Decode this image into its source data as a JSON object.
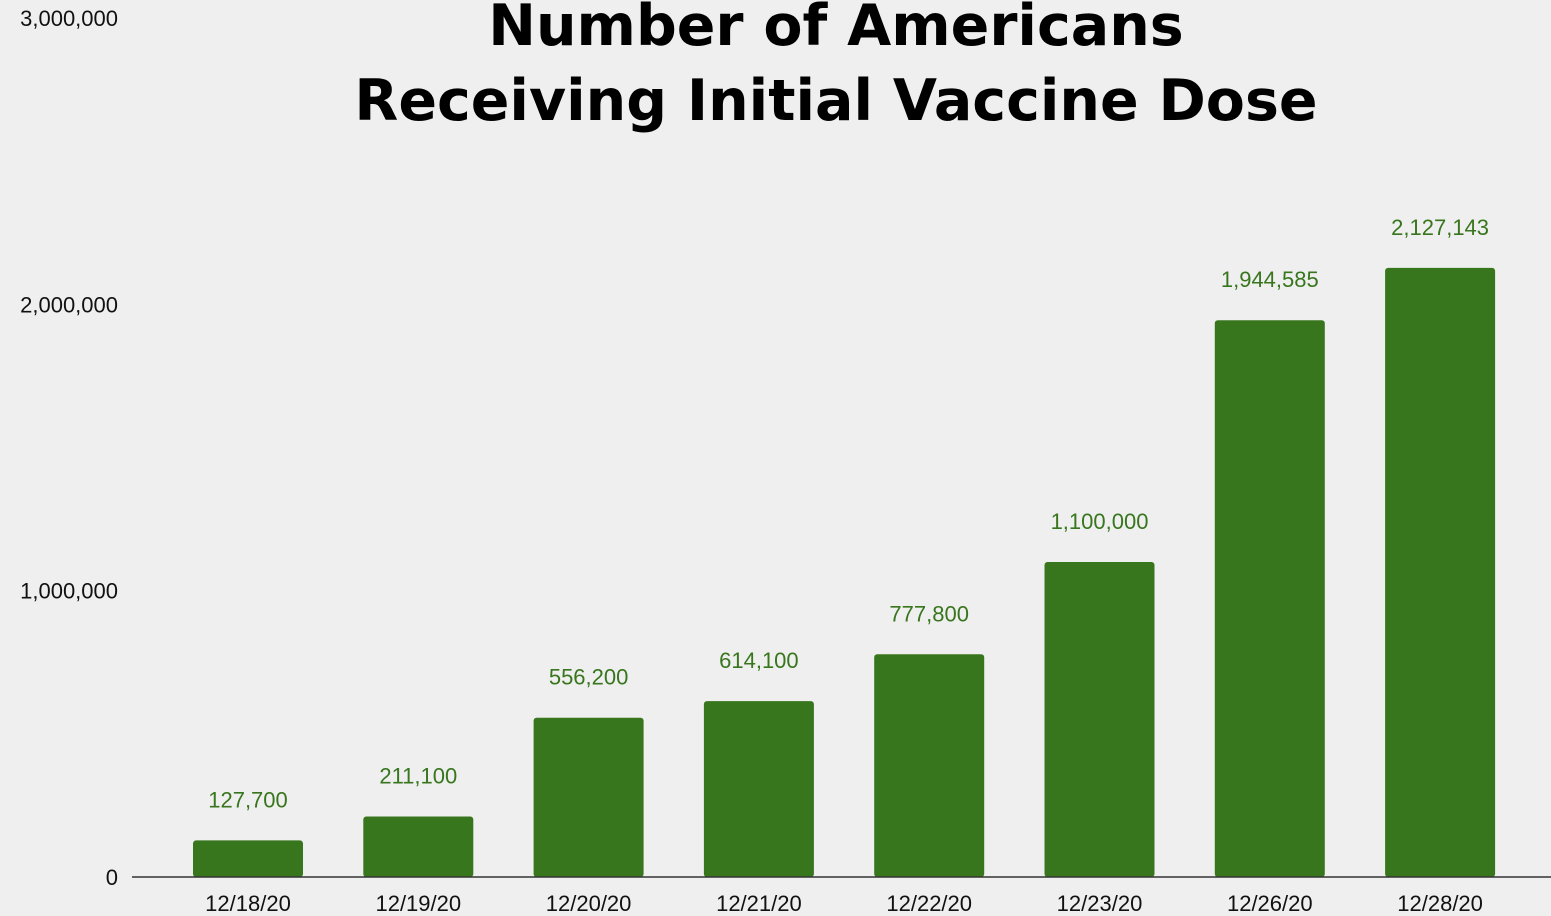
{
  "chart_data": {
    "type": "bar",
    "title": [
      "Number of Americans",
      "Receiving Initial Vaccine Dose"
    ],
    "xlabel": "",
    "ylabel": "",
    "categories": [
      "12/18/20",
      "12/19/20",
      "12/20/20",
      "12/21/20",
      "12/22/20",
      "12/23/20",
      "12/26/20",
      "12/28/20"
    ],
    "values": [
      127700,
      211100,
      556200,
      614100,
      777800,
      1100000,
      1944585,
      2127143
    ],
    "data_labels": [
      "127,700",
      "211,100",
      "556,200",
      "614,100",
      "777,800",
      "1,100,000",
      "1,944,585",
      "2,127,143"
    ],
    "ylim": [
      0,
      3000000
    ],
    "yticks": [
      0,
      1000000,
      2000000,
      3000000
    ],
    "ytick_labels": [
      "0",
      "1,000,000",
      "2,000,000",
      "3,000,000"
    ],
    "grid": false,
    "legend": "none",
    "colors": {
      "bar": "#38761d",
      "label": "#38761d",
      "background": "#efefef",
      "axis": "#333333"
    }
  }
}
